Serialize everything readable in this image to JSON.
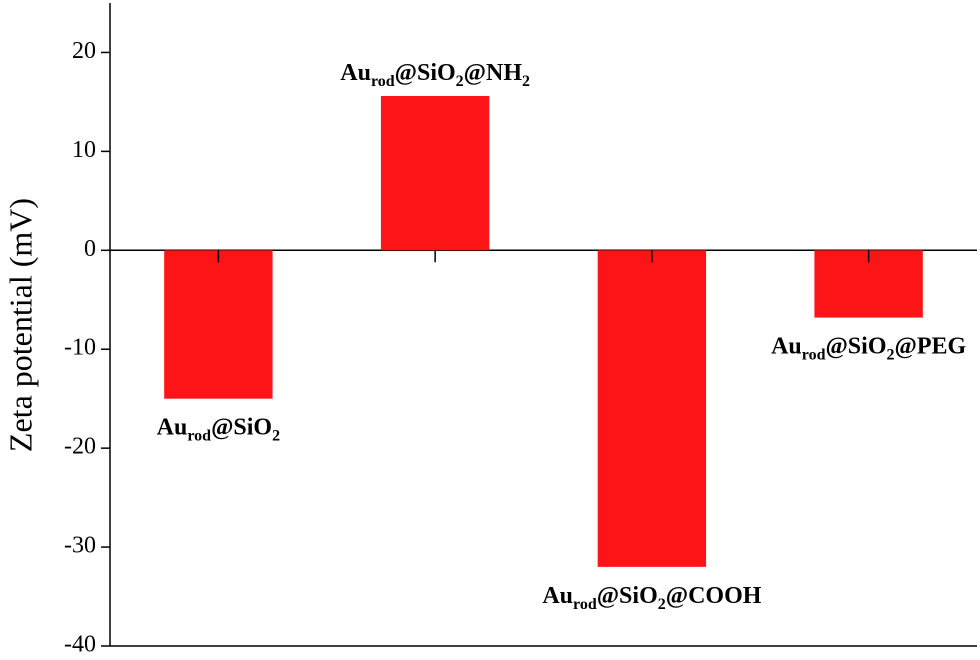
{
  "chart_data": {
    "type": "bar",
    "y_label": "Zeta potential (mV)",
    "categories": [
      [
        "Au",
        "rod",
        "@SiO",
        "2"
      ],
      [
        "Au",
        "rod",
        "@SiO",
        "2",
        "@NH",
        "2"
      ],
      [
        "Au",
        "rod",
        "@SiO",
        "2",
        "@COOH"
      ],
      [
        "Au",
        "rod",
        "@SiO",
        "2",
        "@PEG"
      ]
    ],
    "values": [
      -15,
      15.6,
      -32,
      -6.8
    ],
    "color": "#fd1416",
    "ylim": [
      -40,
      25
    ],
    "yticks": [
      -40,
      -30,
      -20,
      -10,
      0,
      10,
      20
    ],
    "grid": false
  }
}
